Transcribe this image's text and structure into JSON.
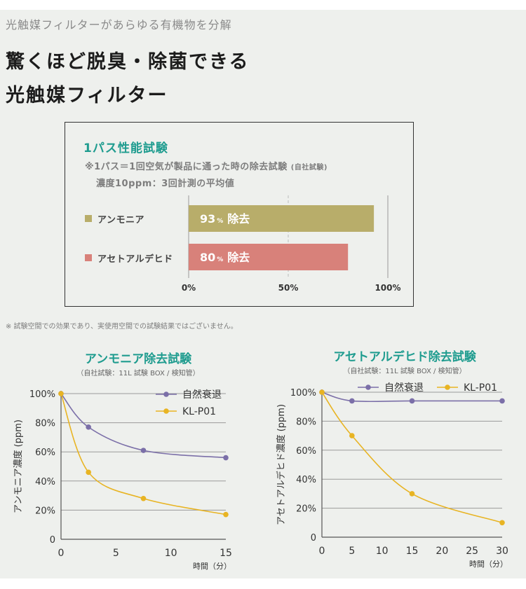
{
  "header": {
    "subheading": "光触媒フィルターがあらゆる有機物を分解",
    "title_line1": "驚くほど脱臭・除菌できる",
    "title_line2": "光触媒フィルター"
  },
  "pass_test": {
    "title": "1パス性能試験",
    "note_line1": "※1パス＝1回空気が製品に通った時の除去試験",
    "note_line1_small": "(自社試験)",
    "note_line2": "濃度10ppm：3回計測の平均値",
    "colors": {
      "ammonia": "#b8ad6a",
      "acetaldehyde": "#d8817a"
    }
  },
  "disclaimer": "※ 試験空間での効果であり、実使用空間での試験結果ではございません。",
  "chart_data": [
    {
      "type": "bar",
      "orientation": "horizontal",
      "title": "1パス性能試験",
      "categories": [
        "アンモニア",
        "アセトアルデヒド"
      ],
      "values": [
        93,
        80
      ],
      "value_labels": [
        "93",
        "80"
      ],
      "value_unit": "%",
      "value_suffix": "除去",
      "xlim": [
        0,
        100
      ],
      "xticks": [
        "0%",
        "50%",
        "100%"
      ]
    },
    {
      "type": "line",
      "title": "アンモニア除去試験",
      "subtitle": "（自社試験：11L 試験 BOX / 検知管）",
      "xlabel": "時間（分）",
      "ylabel": "アンモニア濃度 (ppm)",
      "xlim": [
        0,
        15
      ],
      "ylim": [
        0,
        100
      ],
      "xticks": [
        "0",
        "5",
        "10",
        "15"
      ],
      "yticks": [
        "0",
        "20%",
        "40%",
        "60%",
        "80%",
        "100%"
      ],
      "legend_position": "top-right",
      "series": [
        {
          "name": "自然衰退",
          "color": "#7b6fa8",
          "x": [
            0,
            2.5,
            7.5,
            15
          ],
          "y": [
            100,
            77,
            61,
            56
          ]
        },
        {
          "name": "KL-P01",
          "color": "#e8b423",
          "x": [
            0,
            2.5,
            7.5,
            15
          ],
          "y": [
            100,
            46,
            28,
            17
          ]
        }
      ]
    },
    {
      "type": "line",
      "title": "アセトアルデヒド除去試験",
      "subtitle": "（自社試験：11L 試験 BOX / 検知管）",
      "xlabel": "時間（分）",
      "ylabel": "アセトアルデヒド濃度 (ppm)",
      "xlim": [
        0,
        30
      ],
      "ylim": [
        0,
        100
      ],
      "xticks": [
        "0",
        "5",
        "10",
        "15",
        "20",
        "25",
        "30"
      ],
      "yticks": [
        "0",
        "20%",
        "40%",
        "60%",
        "80%",
        "100%"
      ],
      "legend_position": "top",
      "series": [
        {
          "name": "自然衰退",
          "color": "#7b6fa8",
          "x": [
            0,
            5,
            15,
            30
          ],
          "y": [
            100,
            94,
            94,
            94
          ]
        },
        {
          "name": "KL-P01",
          "color": "#e8b423",
          "x": [
            0,
            5,
            15,
            30
          ],
          "y": [
            100,
            70,
            30,
            10
          ]
        }
      ]
    }
  ]
}
